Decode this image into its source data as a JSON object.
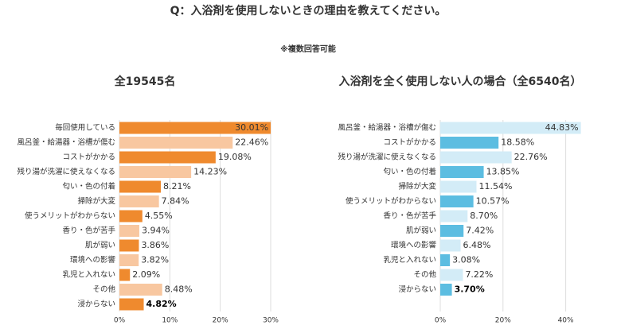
{
  "title": "Q：入浴剤を使用しないときの理由を教えてください。",
  "note": "※複数回答可能",
  "chart_data": [
    {
      "type": "bar",
      "orientation": "horizontal",
      "title": "全19545名",
      "title_color": "#e8822a",
      "categories": [
        "毎回使用している",
        "風呂釜・給湯器・浴槽が傷む",
        "コストがかかる",
        "残り湯が洗濯に使えなくなる",
        "匂い・色の付着",
        "掃除が大変",
        "使うメリットがわからない",
        "香り・色が苦手",
        "肌が弱い",
        "環境への影響",
        "乳児と入れない",
        "その他",
        "浸からない"
      ],
      "values": [
        30.01,
        22.46,
        19.08,
        14.23,
        8.21,
        7.84,
        4.55,
        3.94,
        3.86,
        3.82,
        2.09,
        8.48,
        4.82
      ],
      "value_labels": [
        "30.01%",
        "22.46%",
        "19.08%",
        "14.23%",
        "8.21%",
        "7.84%",
        "4.55%",
        "3.94%",
        "3.86%",
        "3.82%",
        "2.09%",
        "8.48%",
        "4.82%"
      ],
      "colors": [
        "#ef8a2e",
        "#f8c7a0",
        "#ef8a2e",
        "#f8c7a0",
        "#ef8a2e",
        "#f8c7a0",
        "#ef8a2e",
        "#f8c7a0",
        "#ef8a2e",
        "#f8c7a0",
        "#ef8a2e",
        "#f8c7a0",
        "#ef8a2e"
      ],
      "xlim": [
        0,
        30
      ],
      "xticks": [
        {
          "value": 0,
          "label": "0%"
        },
        {
          "value": 10,
          "label": "10%"
        },
        {
          "value": 20,
          "label": "20%"
        },
        {
          "value": 30,
          "label": "30%"
        }
      ],
      "grid": true
    },
    {
      "type": "bar",
      "orientation": "horizontal",
      "title": "入浴剤を全く使用しない人の場合（全6540名）",
      "title_color": "#2f8fb8",
      "categories": [
        "風呂釜・給湯器・浴槽が傷む",
        "コストがかかる",
        "残り湯が洗濯に使えなくなる",
        "匂い・色の付着",
        "掃除が大変",
        "使うメリットがわからない",
        "香り・色が苦手",
        "肌が弱い",
        "環境への影響",
        "乳児と入れない",
        "その他",
        "浸からない"
      ],
      "values": [
        44.83,
        18.58,
        22.76,
        13.85,
        11.54,
        10.57,
        8.7,
        7.42,
        6.48,
        3.08,
        7.22,
        3.7
      ],
      "value_labels": [
        "44.83%",
        "18.58%",
        "22.76%",
        "13.85%",
        "11.54%",
        "10.57%",
        "8.70%",
        "7.42%",
        "6.48%",
        "3.08%",
        "7.22%",
        "3.70%"
      ],
      "colors": [
        "#d3ecf7",
        "#5cbde1",
        "#d3ecf7",
        "#5cbde1",
        "#d3ecf7",
        "#5cbde1",
        "#d3ecf7",
        "#5cbde1",
        "#d3ecf7",
        "#5cbde1",
        "#d3ecf7",
        "#5cbde1"
      ],
      "xlim": [
        0,
        50
      ],
      "xticks": [
        {
          "value": 0,
          "label": "0%"
        },
        {
          "value": 20,
          "label": "20%"
        },
        {
          "value": 40,
          "label": "40%"
        }
      ],
      "grid": true
    }
  ]
}
